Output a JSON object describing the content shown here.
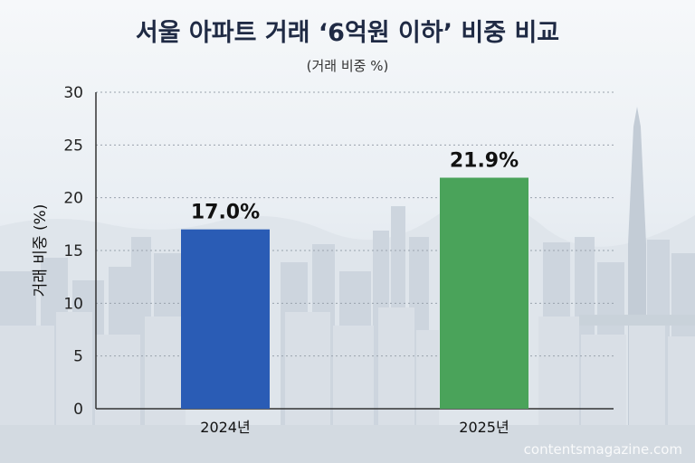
{
  "title": "서울 아파트 거래 ‘6억원 이하’ 비중 비교",
  "subtitle": "(거래 비중 %)",
  "watermark": "contentsmagazine.com",
  "colors": {
    "bar_2024": "#2a5cb5",
    "bar_2025": "#4aa35a",
    "title": "#1f2a44"
  },
  "chart_data": {
    "type": "bar",
    "categories": [
      "2024년",
      "2025년"
    ],
    "values": [
      17.0,
      21.9
    ],
    "value_labels": [
      "17.0%",
      "21.9%"
    ],
    "title": "서울 아파트 거래 ‘6억원 이하’ 비중 비교",
    "subtitle": "(거래 비중 %)",
    "xlabel": "",
    "ylabel": "거래 비중 (%)",
    "ylim": [
      0,
      30
    ],
    "yticks": [
      0,
      5,
      10,
      15,
      20,
      25,
      30
    ],
    "grid": true
  }
}
